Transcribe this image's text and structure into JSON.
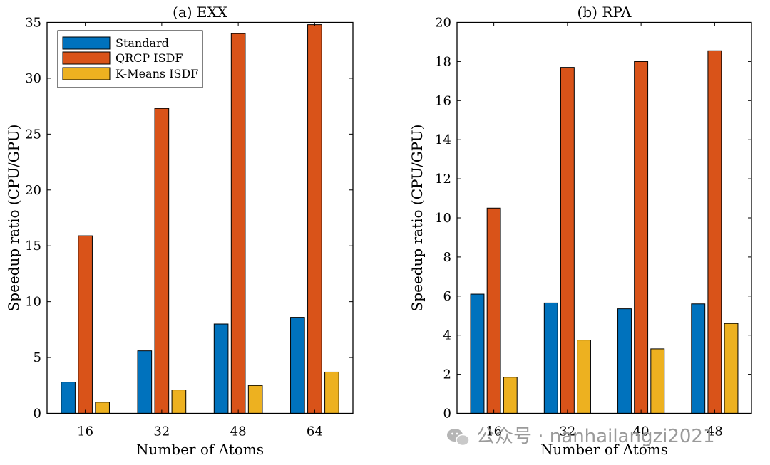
{
  "colors": {
    "standard": "#0072BD",
    "qrcp": "#D95319",
    "kmeans": "#EDB120"
  },
  "watermark": "公众号 · nanhailangzi2021",
  "chart_data": [
    {
      "type": "bar",
      "title": "(a) EXX",
      "xlabel": "Number of Atoms",
      "ylabel": "Speedup ratio (CPU/GPU)",
      "categories": [
        "16",
        "32",
        "48",
        "64"
      ],
      "ylim": [
        0,
        35
      ],
      "yticks": [
        0,
        5,
        10,
        15,
        20,
        25,
        30,
        35
      ],
      "legend_position": "top-left",
      "series": [
        {
          "name": "Standard",
          "values": [
            2.8,
            5.6,
            8.0,
            8.6
          ]
        },
        {
          "name": "QRCP ISDF",
          "values": [
            15.9,
            27.3,
            34.0,
            34.8
          ]
        },
        {
          "name": "K-Means ISDF",
          "values": [
            1.0,
            2.1,
            2.5,
            3.7
          ]
        }
      ]
    },
    {
      "type": "bar",
      "title": "(b) RPA",
      "xlabel": "Number of Atoms",
      "ylabel": "Speedup ratio (CPU/GPU)",
      "categories": [
        "16",
        "32",
        "40",
        "48"
      ],
      "ylim": [
        0,
        20
      ],
      "yticks": [
        0,
        2,
        4,
        6,
        8,
        10,
        12,
        14,
        16,
        18,
        20
      ],
      "series": [
        {
          "name": "Standard",
          "values": [
            6.1,
            5.65,
            5.35,
            5.6
          ]
        },
        {
          "name": "QRCP ISDF",
          "values": [
            10.5,
            17.7,
            18.0,
            18.55
          ]
        },
        {
          "name": "K-Means ISDF",
          "values": [
            1.85,
            3.75,
            3.3,
            4.6
          ]
        }
      ]
    }
  ]
}
